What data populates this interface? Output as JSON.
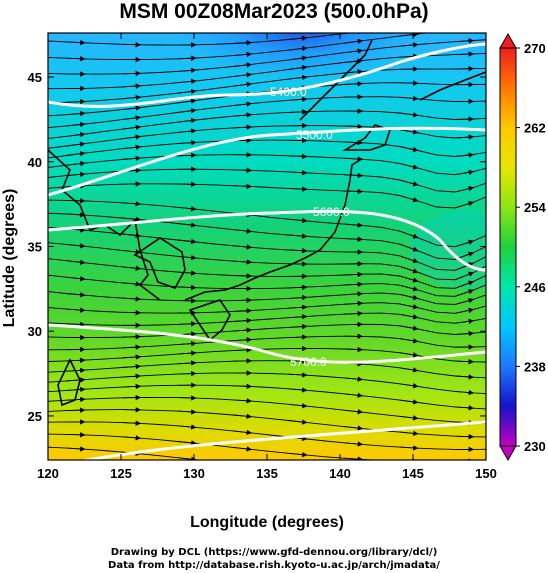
{
  "title": "MSM 00Z08Mar2023 (500.0hPa)",
  "xlabel": "Longitude (degrees)",
  "ylabel": "Latitude (degrees)",
  "credit_line1": "Drawing by DCL (https://www.gfd-dennou.org/library/dcl/)",
  "credit_line2": "Data from http://database.rish.kyoto-u.ac.jp/arch/jmadata/",
  "map": {
    "lon_range": [
      120,
      150
    ],
    "lat_range": [
      22.4,
      47.6
    ],
    "lon_ticks": [
      "120",
      "125",
      "130",
      "135",
      "140",
      "145",
      "150"
    ],
    "lat_ticks": [
      "25",
      "30",
      "35",
      "40",
      "45"
    ],
    "contour_labels": [
      "5400.0",
      "5500.0",
      "5600.0",
      "5700.0"
    ]
  },
  "colorbar": {
    "range": [
      230,
      270
    ],
    "ticks": [
      "230",
      "238",
      "246",
      "254",
      "262",
      "270"
    ],
    "colors": [
      "#c400c4",
      "#1414c8",
      "#1e78ff",
      "#00c8ff",
      "#00e6aa",
      "#1ed23c",
      "#8ce614",
      "#e6e600",
      "#ffc800",
      "#ff7800",
      "#f01e1e"
    ]
  }
}
